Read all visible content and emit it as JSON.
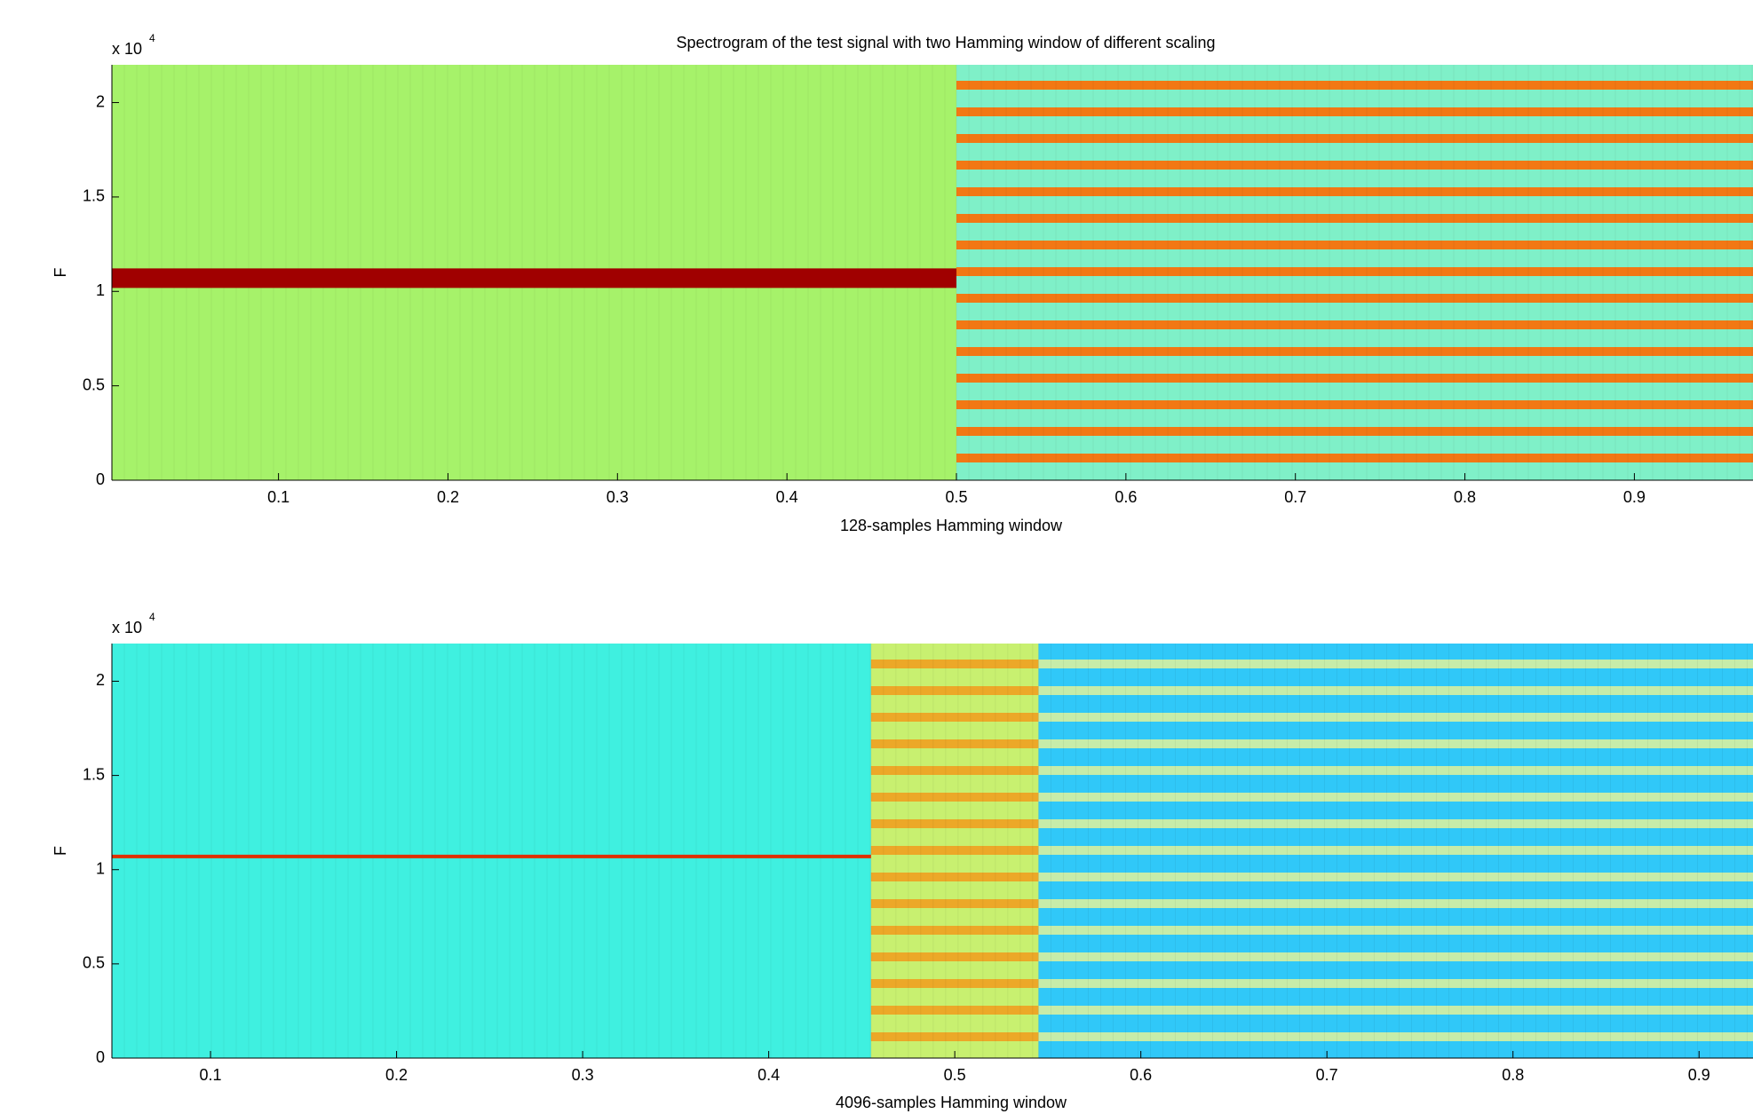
{
  "chart_data": [
    {
      "type": "spectrogram",
      "title": "Spectrogram of the test signal with two Hamming window of different scaling",
      "xlabel": "128-samples Hamming window",
      "ylabel": "F",
      "y_scale_label": "x 10",
      "y_scale_exponent": "4",
      "xlim": [
        0.0017,
        0.97
      ],
      "ylim": [
        0,
        2.2
      ],
      "xticks": [
        0.1,
        0.2,
        0.3,
        0.4,
        0.5,
        0.6,
        0.7,
        0.8,
        0.9
      ],
      "yticks": [
        0,
        0.5,
        1,
        1.5,
        2
      ],
      "regions": [
        {
          "x0": 0.0017,
          "x1": 0.5,
          "color": "#a6f26a"
        },
        {
          "x0": 0.5,
          "x1": 0.97,
          "color": "#7ff0c8",
          "stripe_color": "#ff6a00"
        }
      ],
      "tone_y": 1.07,
      "tone_color": "#a00000"
    },
    {
      "type": "spectrogram",
      "xlabel": "4096-samples Hamming window",
      "ylabel": "F",
      "y_scale_label": "x 10",
      "y_scale_exponent": "4",
      "xlim": [
        0.047,
        0.929
      ],
      "ylim": [
        0,
        2.2
      ],
      "xticks": [
        0.1,
        0.2,
        0.3,
        0.4,
        0.5,
        0.6,
        0.7,
        0.8,
        0.9
      ],
      "yticks": [
        0,
        0.5,
        1,
        1.5,
        2
      ],
      "regions": [
        {
          "x0": 0.047,
          "x1": 0.455,
          "color": "#3ff0e0"
        },
        {
          "x0": 0.455,
          "x1": 0.545,
          "color": "#c8f070",
          "stripe_color": "#f0a020"
        },
        {
          "x0": 0.545,
          "x1": 0.929,
          "color": "#30c8f8",
          "stripe_color": "#d8f0a0"
        }
      ],
      "tone_y": 1.07,
      "tone_color": "#e03000"
    }
  ]
}
